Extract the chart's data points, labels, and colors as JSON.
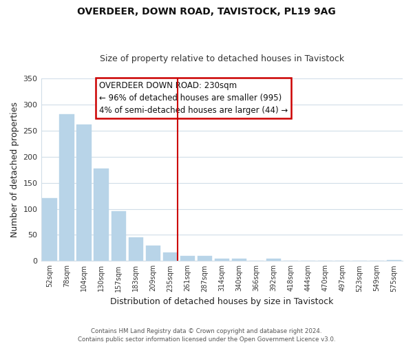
{
  "title": "OVERDEER, DOWN ROAD, TAVISTOCK, PL19 9AG",
  "subtitle": "Size of property relative to detached houses in Tavistock",
  "xlabel": "Distribution of detached houses by size in Tavistock",
  "ylabel": "Number of detached properties",
  "bar_labels": [
    "52sqm",
    "78sqm",
    "104sqm",
    "130sqm",
    "157sqm",
    "183sqm",
    "209sqm",
    "235sqm",
    "261sqm",
    "287sqm",
    "314sqm",
    "340sqm",
    "366sqm",
    "392sqm",
    "418sqm",
    "444sqm",
    "470sqm",
    "497sqm",
    "523sqm",
    "549sqm",
    "575sqm"
  ],
  "bar_values": [
    120,
    281,
    261,
    177,
    96,
    45,
    29,
    16,
    9,
    9,
    4,
    4,
    0,
    4,
    0,
    0,
    0,
    0,
    0,
    0,
    2
  ],
  "bar_color": "#b8d4e8",
  "highlight_index": 7,
  "vline_color": "#cc0000",
  "ylim": [
    0,
    350
  ],
  "yticks": [
    0,
    50,
    100,
    150,
    200,
    250,
    300,
    350
  ],
  "annotation_title": "OVERDEER DOWN ROAD: 230sqm",
  "annotation_line1": "← 96% of detached houses are smaller (995)",
  "annotation_line2": "4% of semi-detached houses are larger (44) →",
  "footer_line1": "Contains HM Land Registry data © Crown copyright and database right 2024.",
  "footer_line2": "Contains public sector information licensed under the Open Government Licence v3.0.",
  "background_color": "#ffffff",
  "grid_color": "#d0dde8"
}
